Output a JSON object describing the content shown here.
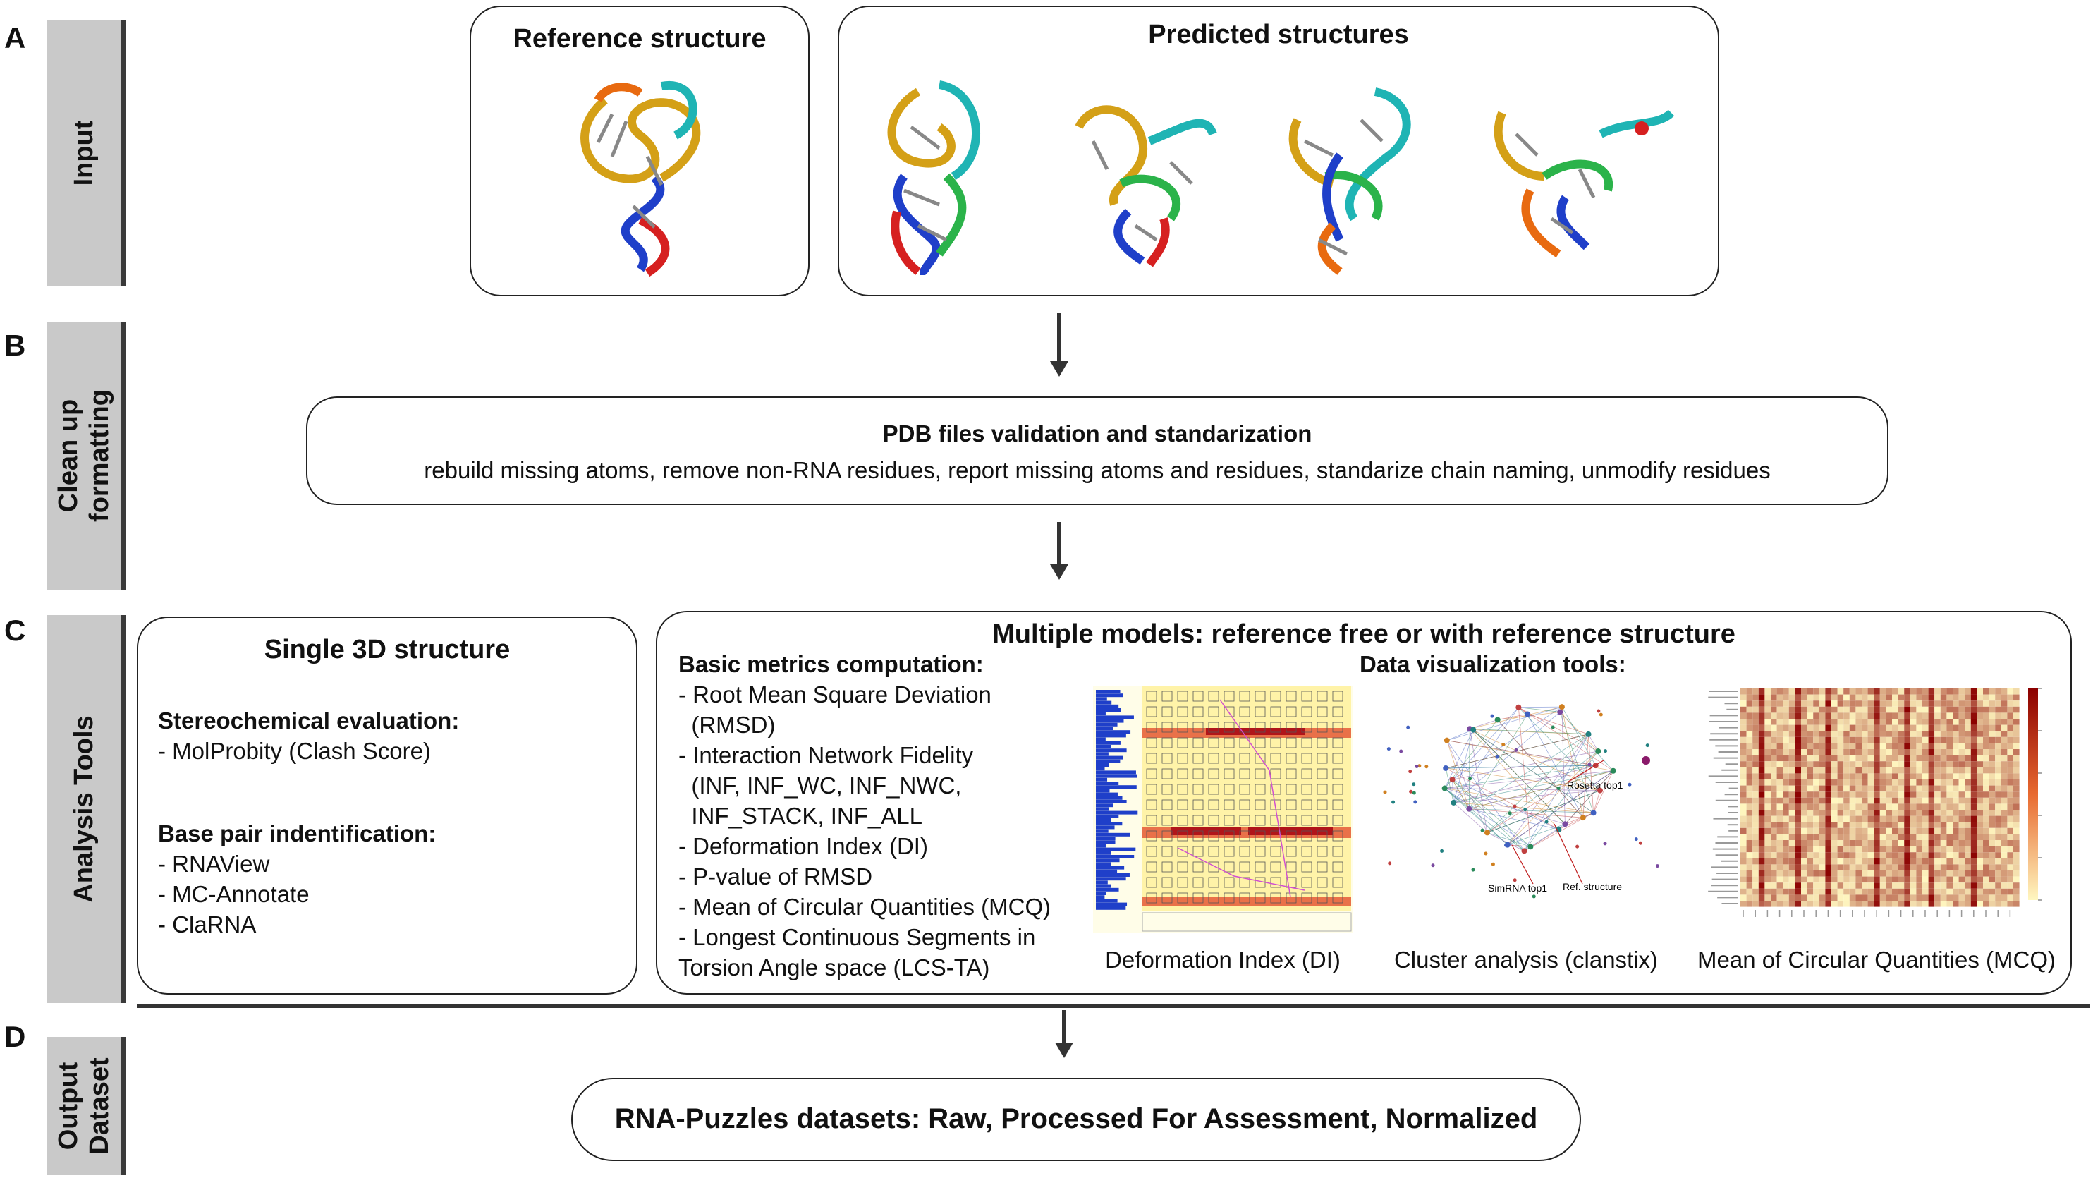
{
  "stages": {
    "a": {
      "letter": "A",
      "label": "Input"
    },
    "b": {
      "letter": "B",
      "label_line1": "Clean up",
      "label_line2": "formatting"
    },
    "c": {
      "letter": "C",
      "label": "Analysis Tools"
    },
    "d": {
      "letter": "D",
      "label_line1": "Output",
      "label_line2": "Dataset"
    }
  },
  "input": {
    "reference_title": "Reference structure",
    "predicted_title": "Predicted structures"
  },
  "cleanup": {
    "title": "PDB files validation and standarization",
    "description": "rebuild missing atoms, remove non-RNA residues, report missing atoms and residues, standarize chain naming, unmodify residues"
  },
  "single": {
    "title": "Single 3D structure",
    "stereo_heading": "Stereochemical evaluation:",
    "stereo_items": [
      "- MolProbity (Clash Score)"
    ],
    "basepair_heading": "Base pair indentification:",
    "basepair_items": [
      "- RNAView",
      "- MC-Annotate",
      "- ClaRNA"
    ]
  },
  "multiple": {
    "title": "Multiple models: reference free or with reference structure",
    "metrics_heading": "Basic metrics computation:",
    "metrics_lines": [
      "- Root Mean Square Deviation",
      "  (RMSD)",
      "- Interaction Network Fidelity",
      "  (INF, INF_WC, INF_NWC,",
      "  INF_STACK, INF_ALL",
      "- Deformation Index (DI)",
      "- P-value of RMSD",
      "- Mean of Circular Quantities (MCQ)",
      "- Longest Continuous Segments in",
      "Torsion Angle space (LCS-TA)"
    ],
    "viz_heading": "Data visualization tools:",
    "viz_captions": [
      "Deformation Index (DI)",
      "Cluster analysis (clanstix)",
      "Mean of Circular Quantities (MCQ)"
    ],
    "cluster_labels": {
      "rosetta": "Rosetta top1",
      "simrna": "SimRNA top1",
      "ref": "Ref. structure"
    }
  },
  "output": {
    "title": "RNA-Puzzles datasets: Raw, Processed For Assessment, Normalized"
  },
  "colors": {
    "stage_bar": "#c9c9c9",
    "stage_border": "#3a3a3a",
    "heat_low": "#fff7c0",
    "heat_high": "#8b0000",
    "di_bar": "#1f3fc9"
  },
  "icons": [
    "rna-3d-structure",
    "down-arrow"
  ]
}
